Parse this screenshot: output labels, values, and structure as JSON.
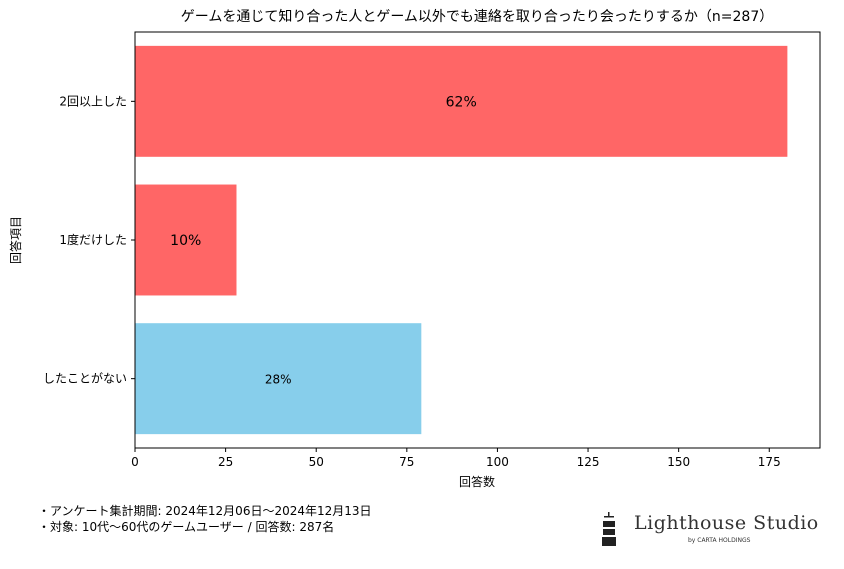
{
  "chart_data": {
    "type": "bar",
    "orientation": "horizontal",
    "title": "ゲームを通じて知り合った人とゲーム以外でも連絡を取り合ったり会ったりするか（n=287）",
    "xlabel": "回答数",
    "ylabel": "回答項目",
    "categories": [
      "2回以上した",
      "1度だけした",
      "したことがない"
    ],
    "values": [
      180,
      28,
      79
    ],
    "data_labels": [
      "62%",
      "10%",
      "28%"
    ],
    "colors": [
      "#ff6666",
      "#ff6666",
      "#87ceeb"
    ],
    "xlim": [
      0,
      189
    ],
    "xticks": [
      0,
      25,
      50,
      75,
      100,
      125,
      150,
      175
    ],
    "grid": false
  },
  "notes": [
    "・アンケート集計期間: 2024年12月06日〜2024年12月13日",
    "・対象: 10代〜60代のゲームユーザー / 回答数: 287名"
  ],
  "logo": {
    "name": "Lighthouse Studio",
    "sub": "by CARTA HOLDINGS"
  }
}
